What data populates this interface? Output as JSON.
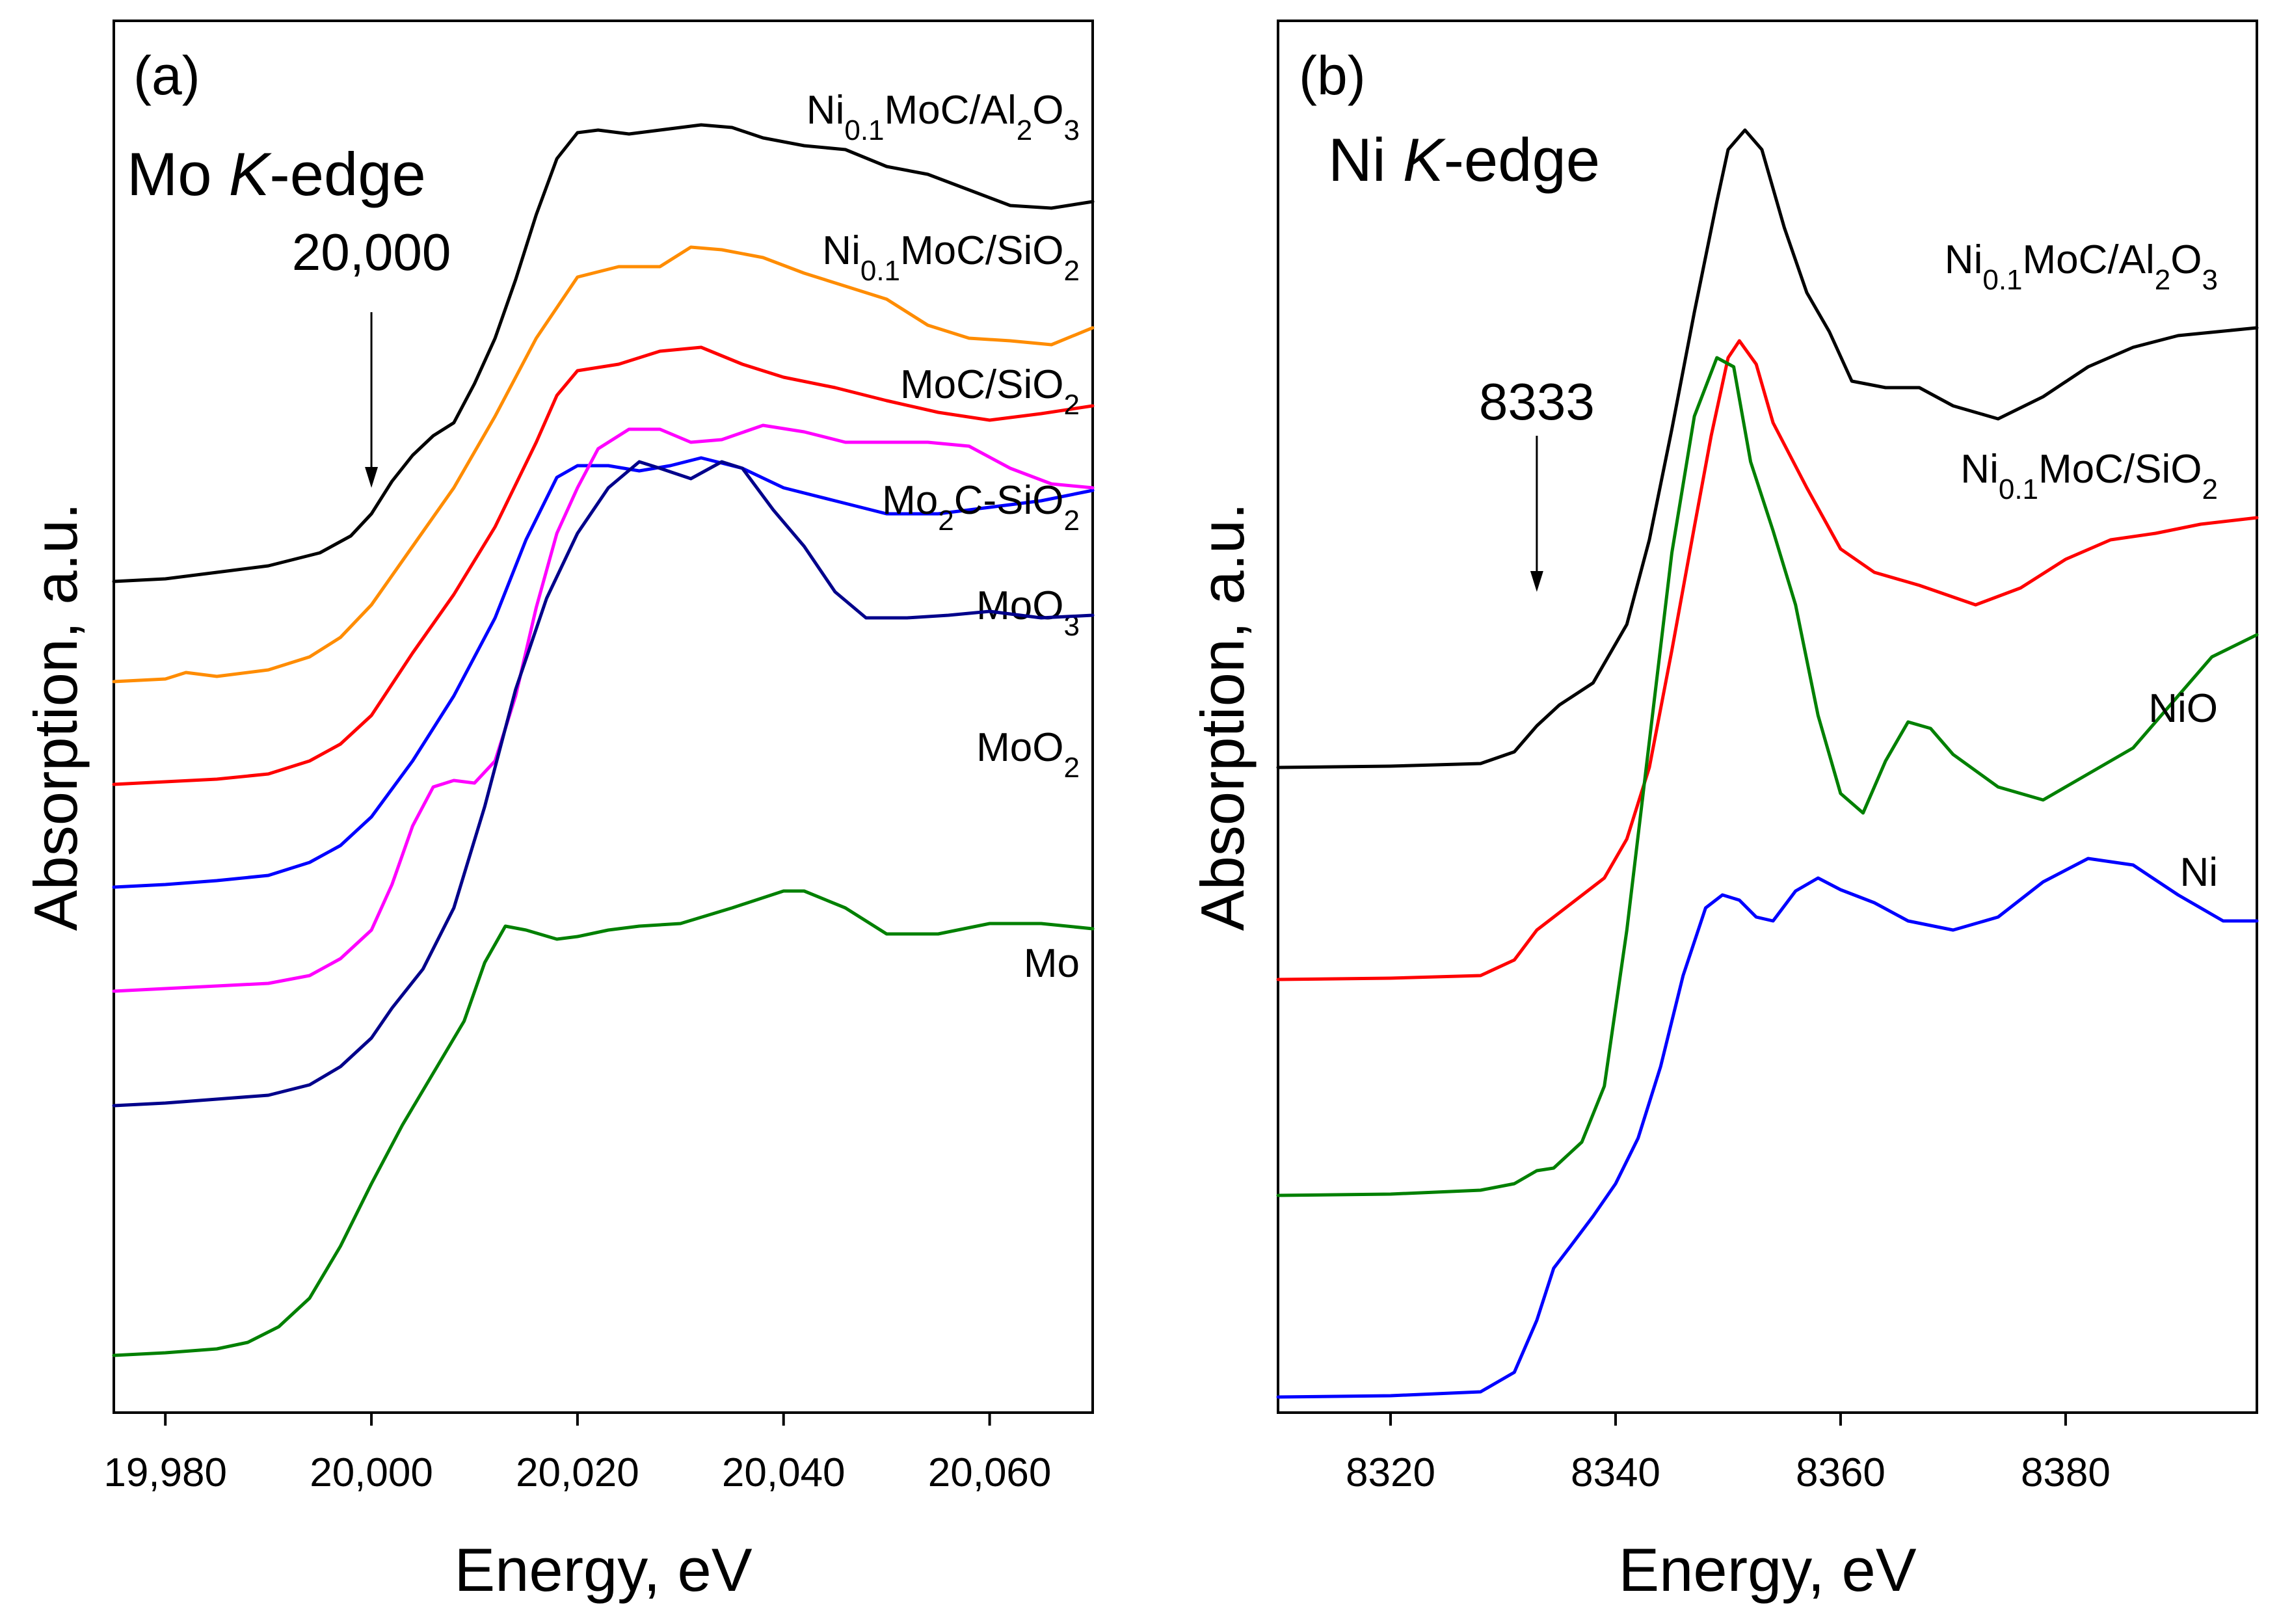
{
  "chart_data": [
    {
      "type": "line",
      "panel_label": "(a)",
      "edge_title": {
        "pre": "Mo ",
        "italic": "K",
        "post": "-edge"
      },
      "xlabel": "Energy, eV",
      "ylabel": "Absorption, a.u.",
      "xlim": [
        19975,
        20070
      ],
      "ylim": [
        0,
        10
      ],
      "xticks": [
        {
          "value": 19980,
          "label": "19,980"
        },
        {
          "value": 20000,
          "label": "20,000"
        },
        {
          "value": 20020,
          "label": "20,020"
        },
        {
          "value": 20040,
          "label": "20,040"
        },
        {
          "value": 20060,
          "label": "20,060"
        }
      ],
      "arrow": {
        "label": "20,000",
        "x": 20000,
        "y_from": 8.3,
        "y_to": 6.95
      },
      "series": [
        {
          "name": "Ni0.1MoC/Al2O3",
          "label_parts": [
            {
              "t": "Ni"
            },
            {
              "t": "0.1",
              "sub": true
            },
            {
              "t": "MoC/Al"
            },
            {
              "t": "2",
              "sub": true
            },
            {
              "t": "O"
            },
            {
              "t": "3",
              "sub": true
            }
          ],
          "color": "#000000",
          "x": [
            19975,
            19980,
            19985,
            19990,
            19995,
            19998,
            20000,
            20002,
            20004,
            20006,
            20008,
            20010,
            20012,
            20014,
            20016,
            20018,
            20020,
            20022,
            20025,
            20028,
            20032,
            20035,
            20038,
            20042,
            20046,
            20050,
            20054,
            20058,
            20062,
            20066,
            20070
          ],
          "y": [
            6.23,
            6.25,
            6.3,
            6.35,
            6.45,
            6.58,
            6.75,
            7.0,
            7.2,
            7.35,
            7.45,
            7.75,
            8.1,
            8.55,
            9.05,
            9.48,
            9.68,
            9.7,
            9.67,
            9.7,
            9.74,
            9.72,
            9.64,
            9.58,
            9.55,
            9.42,
            9.36,
            9.24,
            9.12,
            9.1,
            9.15
          ]
        },
        {
          "name": "Ni0.1MoC/SiO2",
          "label_parts": [
            {
              "t": "Ni"
            },
            {
              "t": "0.1",
              "sub": true
            },
            {
              "t": "MoC/SiO"
            },
            {
              "t": "2",
              "sub": true
            }
          ],
          "color": "#ff8c00",
          "x": [
            19975,
            19980,
            19982,
            19985,
            19990,
            19994,
            19997,
            20000,
            20004,
            20008,
            20012,
            20016,
            20020,
            20024,
            20028,
            20031,
            20034,
            20038,
            20042,
            20046,
            20050,
            20054,
            20058,
            20062,
            20066,
            20070
          ],
          "y": [
            5.46,
            5.48,
            5.53,
            5.5,
            5.55,
            5.65,
            5.8,
            6.05,
            6.5,
            6.95,
            7.5,
            8.1,
            8.57,
            8.65,
            8.65,
            8.8,
            8.78,
            8.72,
            8.6,
            8.5,
            8.4,
            8.2,
            8.1,
            8.08,
            8.05,
            8.18
          ]
        },
        {
          "name": "MoC/SiO2",
          "label_parts": [
            {
              "t": "MoC/SiO"
            },
            {
              "t": "2",
              "sub": true
            }
          ],
          "color": "#ff0000",
          "x": [
            19975,
            19980,
            19985,
            19990,
            19994,
            19997,
            20000,
            20004,
            20008,
            20012,
            20016,
            20018,
            20020,
            20024,
            20028,
            20032,
            20036,
            20040,
            20045,
            20050,
            20055,
            20060,
            20065,
            20070
          ],
          "y": [
            4.67,
            4.69,
            4.71,
            4.75,
            4.85,
            4.98,
            5.2,
            5.68,
            6.13,
            6.65,
            7.3,
            7.66,
            7.85,
            7.9,
            8.0,
            8.03,
            7.9,
            7.8,
            7.72,
            7.62,
            7.53,
            7.47,
            7.52,
            7.58
          ]
        },
        {
          "name": "Mo2C-SiO2",
          "label_parts": [
            {
              "t": "Mo"
            },
            {
              "t": "2",
              "sub": true
            },
            {
              "t": "C-SiO"
            },
            {
              "t": "2",
              "sub": true
            }
          ],
          "color": "#0000ff",
          "x": [
            19975,
            19980,
            19985,
            19990,
            19994,
            19997,
            20000,
            20004,
            20008,
            20012,
            20015,
            20018,
            20020,
            20023,
            20026,
            20029,
            20032,
            20036,
            20040,
            20045,
            20050,
            20055,
            20060,
            20065,
            20070
          ],
          "y": [
            3.88,
            3.9,
            3.93,
            3.97,
            4.07,
            4.2,
            4.42,
            4.85,
            5.35,
            5.95,
            6.55,
            7.03,
            7.12,
            7.12,
            7.08,
            7.12,
            7.18,
            7.1,
            6.95,
            6.85,
            6.75,
            6.75,
            6.8,
            6.85,
            6.93
          ]
        },
        {
          "name": "MoO3",
          "label_parts": [
            {
              "t": "MoO"
            },
            {
              "t": "3",
              "sub": true
            }
          ],
          "color": "#ff00ff",
          "x": [
            19975,
            19980,
            19985,
            19990,
            19994,
            19997,
            20000,
            20002,
            20004,
            20006,
            20008,
            20010,
            20012,
            20014,
            20016,
            20018,
            20020,
            20022,
            20025,
            20028,
            20031,
            20034,
            20038,
            20042,
            20046,
            20050,
            20054,
            20058,
            20062,
            20066,
            20070
          ],
          "y": [
            3.08,
            3.1,
            3.12,
            3.14,
            3.2,
            3.33,
            3.55,
            3.9,
            4.35,
            4.65,
            4.7,
            4.68,
            4.85,
            5.35,
            6.03,
            6.6,
            6.95,
            7.25,
            7.4,
            7.4,
            7.3,
            7.32,
            7.43,
            7.38,
            7.3,
            7.3,
            7.3,
            7.27,
            7.1,
            6.98,
            6.95
          ]
        },
        {
          "name": "MoO2",
          "label_parts": [
            {
              "t": "MoO"
            },
            {
              "t": "2",
              "sub": true
            }
          ],
          "color": "#00008b",
          "x": [
            19975,
            19980,
            19985,
            19990,
            19994,
            19997,
            20000,
            20002,
            20005,
            20008,
            20011,
            20014,
            20017,
            20020,
            20023,
            20026,
            20028,
            20031,
            20034,
            20036,
            20039,
            20042,
            20045,
            20048,
            20052,
            20056,
            20060,
            20065,
            20070
          ],
          "y": [
            2.2,
            2.22,
            2.25,
            2.28,
            2.36,
            2.5,
            2.72,
            2.95,
            3.25,
            3.72,
            4.5,
            5.4,
            6.1,
            6.6,
            6.95,
            7.15,
            7.1,
            7.02,
            7.15,
            7.1,
            6.78,
            6.5,
            6.15,
            5.95,
            5.95,
            5.97,
            6.0,
            5.95,
            5.97
          ]
        },
        {
          "name": "Mo",
          "label_parts": [
            {
              "t": "Mo"
            }
          ],
          "color": "#008000",
          "x": [
            19975,
            19980,
            19985,
            19988,
            19991,
            19994,
            19997,
            20000,
            20003,
            20006,
            20009,
            20011,
            20013,
            20015,
            20018,
            20020,
            20023,
            20026,
            20030,
            20035,
            20040,
            20042,
            20046,
            20050,
            20055,
            20060,
            20065,
            20070
          ],
          "y": [
            0.28,
            0.3,
            0.33,
            0.38,
            0.5,
            0.72,
            1.12,
            1.6,
            2.05,
            2.45,
            2.85,
            3.3,
            3.58,
            3.55,
            3.48,
            3.5,
            3.55,
            3.58,
            3.6,
            3.72,
            3.85,
            3.85,
            3.72,
            3.52,
            3.52,
            3.6,
            3.6,
            3.56
          ]
        }
      ]
    },
    {
      "type": "line",
      "panel_label": "(b)",
      "edge_title": {
        "pre": "Ni ",
        "italic": "K",
        "post": "-edge"
      },
      "xlabel": "Energy, eV",
      "ylabel": "Absorption, a.u.",
      "xlim": [
        8310,
        8397
      ],
      "ylim": [
        0,
        10
      ],
      "xticks": [
        {
          "value": 8320,
          "label": "8320"
        },
        {
          "value": 8340,
          "label": "8340"
        },
        {
          "value": 8360,
          "label": "8360"
        },
        {
          "value": 8380,
          "label": "8380"
        }
      ],
      "arrow": {
        "label": "8333",
        "x": 8333,
        "y_from": 7.35,
        "y_to": 6.15
      },
      "series": [
        {
          "name": "Ni0.1MoC/Al2O3",
          "label_parts": [
            {
              "t": "Ni"
            },
            {
              "t": "0.1",
              "sub": true
            },
            {
              "t": "MoC/Al"
            },
            {
              "t": "2",
              "sub": true
            },
            {
              "t": "O"
            },
            {
              "t": "3",
              "sub": true
            }
          ],
          "color": "#000000",
          "x": [
            8310,
            8320,
            8328,
            8331,
            8333,
            8335,
            8338,
            8341,
            8343,
            8345,
            8347,
            8349,
            8350,
            8351.5,
            8353,
            8355,
            8357,
            8359,
            8361,
            8364,
            8367,
            8370,
            8374,
            8378,
            8382,
            8386,
            8390,
            8397
          ],
          "y": [
            4.8,
            4.81,
            4.83,
            4.92,
            5.12,
            5.28,
            5.45,
            5.9,
            6.55,
            7.4,
            8.3,
            9.15,
            9.55,
            9.7,
            9.55,
            8.95,
            8.45,
            8.15,
            7.77,
            7.72,
            7.72,
            7.58,
            7.48,
            7.65,
            7.88,
            8.03,
            8.12,
            8.18
          ]
        },
        {
          "name": "Ni0.1MoC/SiO2",
          "label_parts": [
            {
              "t": "Ni"
            },
            {
              "t": "0.1",
              "sub": true
            },
            {
              "t": "MoC/SiO"
            },
            {
              "t": "2",
              "sub": true
            }
          ],
          "color": "#ff0000",
          "x": [
            8310,
            8320,
            8328,
            8331,
            8333,
            8336,
            8339,
            8341,
            8343,
            8345,
            8347,
            8348.5,
            8350,
            8351,
            8352.5,
            8354,
            8357,
            8360,
            8363,
            8367,
            8372,
            8376,
            8380,
            8384,
            8388,
            8392,
            8397
          ],
          "y": [
            3.17,
            3.18,
            3.2,
            3.32,
            3.55,
            3.75,
            3.95,
            4.25,
            4.8,
            5.7,
            6.65,
            7.35,
            7.95,
            8.08,
            7.9,
            7.45,
            6.95,
            6.48,
            6.3,
            6.2,
            6.05,
            6.18,
            6.4,
            6.55,
            6.6,
            6.67,
            6.72
          ]
        },
        {
          "name": "NiO",
          "label_parts": [
            {
              "t": "NiO"
            }
          ],
          "color": "#008000",
          "x": [
            8310,
            8320,
            8328,
            8331,
            8333,
            8334.5,
            8337,
            8339,
            8341,
            8343,
            8345,
            8347,
            8349,
            8350.5,
            8352,
            8354,
            8356,
            8358,
            8360,
            8362,
            8364,
            8366,
            8368,
            8370,
            8374,
            8378,
            8382,
            8386,
            8390,
            8393,
            8397
          ],
          "y": [
            1.51,
            1.52,
            1.55,
            1.6,
            1.7,
            1.72,
            1.92,
            2.35,
            3.55,
            5.0,
            6.45,
            7.5,
            7.95,
            7.88,
            7.15,
            6.62,
            6.05,
            5.2,
            4.6,
            4.45,
            4.85,
            5.15,
            5.1,
            4.9,
            4.65,
            4.55,
            4.75,
            4.95,
            5.35,
            5.65,
            5.82
          ]
        },
        {
          "name": "Ni",
          "label_parts": [
            {
              "t": "Ni"
            }
          ],
          "color": "#0000ff",
          "x": [
            8310,
            8320,
            8328,
            8331,
            8333,
            8334.5,
            8336,
            8338,
            8340,
            8342,
            8344,
            8346,
            8348,
            8349.5,
            8351,
            8352.5,
            8354,
            8356,
            8358,
            8360,
            8363,
            8366,
            8370,
            8374,
            8378,
            8382,
            8386,
            8390,
            8394,
            8397
          ],
          "y": [
            -0.04,
            -0.03,
            0.0,
            0.15,
            0.55,
            0.95,
            1.12,
            1.35,
            1.6,
            1.95,
            2.5,
            3.2,
            3.72,
            3.82,
            3.78,
            3.65,
            3.62,
            3.85,
            3.95,
            3.86,
            3.76,
            3.62,
            3.55,
            3.65,
            3.92,
            4.1,
            4.05,
            3.82,
            3.62,
            3.62
          ]
        }
      ]
    }
  ]
}
